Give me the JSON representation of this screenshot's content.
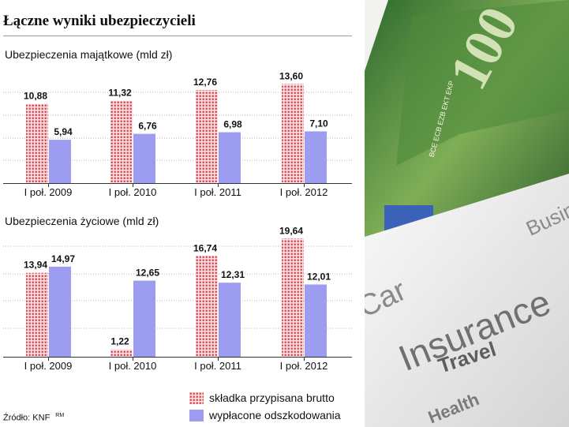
{
  "title": "Łączne wyniki ubezpieczycieli",
  "colors": {
    "premium": "#e2434f",
    "payout": "#9c9cf0",
    "grid": "#b3b3b3"
  },
  "chart_data": [
    {
      "type": "bar",
      "title": "Ubezpieczenia majątkowe (mld zł)",
      "categories": [
        "I poł. 2009",
        "I poł. 2010",
        "I poł. 2011",
        "I poł. 2012"
      ],
      "series": [
        {
          "name": "składka przypisana brutto",
          "values": [
            10.88,
            11.32,
            12.76,
            13.6
          ],
          "labels": [
            "10,88",
            "11,32",
            "12,76",
            "13,60"
          ]
        },
        {
          "name": "wypłacone odszkodowania",
          "values": [
            5.94,
            6.76,
            6.98,
            7.1
          ],
          "labels": [
            "5,94",
            "6,76",
            "6,98",
            "7,10"
          ]
        }
      ],
      "ylim": [
        0,
        14.4
      ]
    },
    {
      "type": "bar",
      "title": "Ubezpieczenia życiowe (mld zł)",
      "categories": [
        "I poł. 2009",
        "I poł. 2010",
        "I poł. 2011",
        "I poł. 2012"
      ],
      "series": [
        {
          "name": "składka przypisana brutto",
          "values": [
            13.94,
            1.22,
            16.74,
            19.64
          ],
          "labels": [
            "13,94",
            "1,22",
            "16,74",
            "19,64"
          ]
        },
        {
          "name": "wypłacone odszkodowania",
          "values": [
            14.97,
            12.65,
            12.31,
            12.01
          ],
          "labels": [
            "14,97",
            "12,65",
            "12,31",
            "12,01"
          ]
        }
      ],
      "ylim": [
        0,
        20.2
      ]
    }
  ],
  "legend": {
    "premium": "składka przypisana brutto",
    "payout": "wypłacone odszkodowania"
  },
  "source": "Źródło: KNF",
  "source_mark": "RM",
  "photo": {
    "texts": [
      "Insurance",
      "Travel",
      "Health",
      "Car",
      "Business"
    ],
    "denomination": "100",
    "serial": "BCE ECB EZB EKT EKP"
  }
}
